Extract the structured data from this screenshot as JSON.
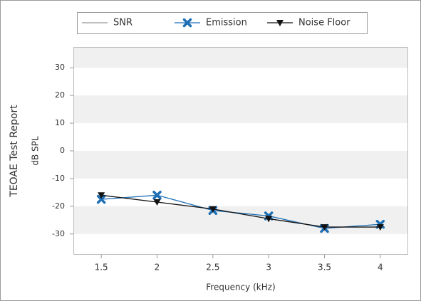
{
  "chart_data": {
    "type": "line",
    "y_title": "TEOAE Test Report",
    "ylabel": "dB SPL",
    "xlabel": "Frequency (kHz)",
    "x": [
      1.5,
      2,
      2.5,
      3,
      3.5,
      4
    ],
    "series": [
      {
        "name": "SNR",
        "color": "#999999",
        "marker": "none",
        "values": [
          null,
          null,
          null,
          null,
          null,
          null
        ]
      },
      {
        "name": "Emission",
        "color": "#1f6fb5",
        "marker": "x",
        "values": [
          -17.5,
          -16,
          -21.5,
          -23.5,
          -28,
          -26.5
        ]
      },
      {
        "name": "Noise Floor",
        "color": "#111111",
        "marker": "triangle-down",
        "values": [
          -16,
          -18.5,
          -21,
          -24.5,
          -27.5,
          -27.5
        ]
      }
    ],
    "xlim": [
      1.25,
      4.25
    ],
    "xticks": [
      1.5,
      2,
      2.5,
      3,
      3.5,
      4
    ],
    "ylim": [
      -37.5,
      37.5
    ],
    "yticks": [
      30,
      20,
      10,
      0,
      -10,
      -20,
      -30
    ],
    "grid": true,
    "legend": "top"
  }
}
